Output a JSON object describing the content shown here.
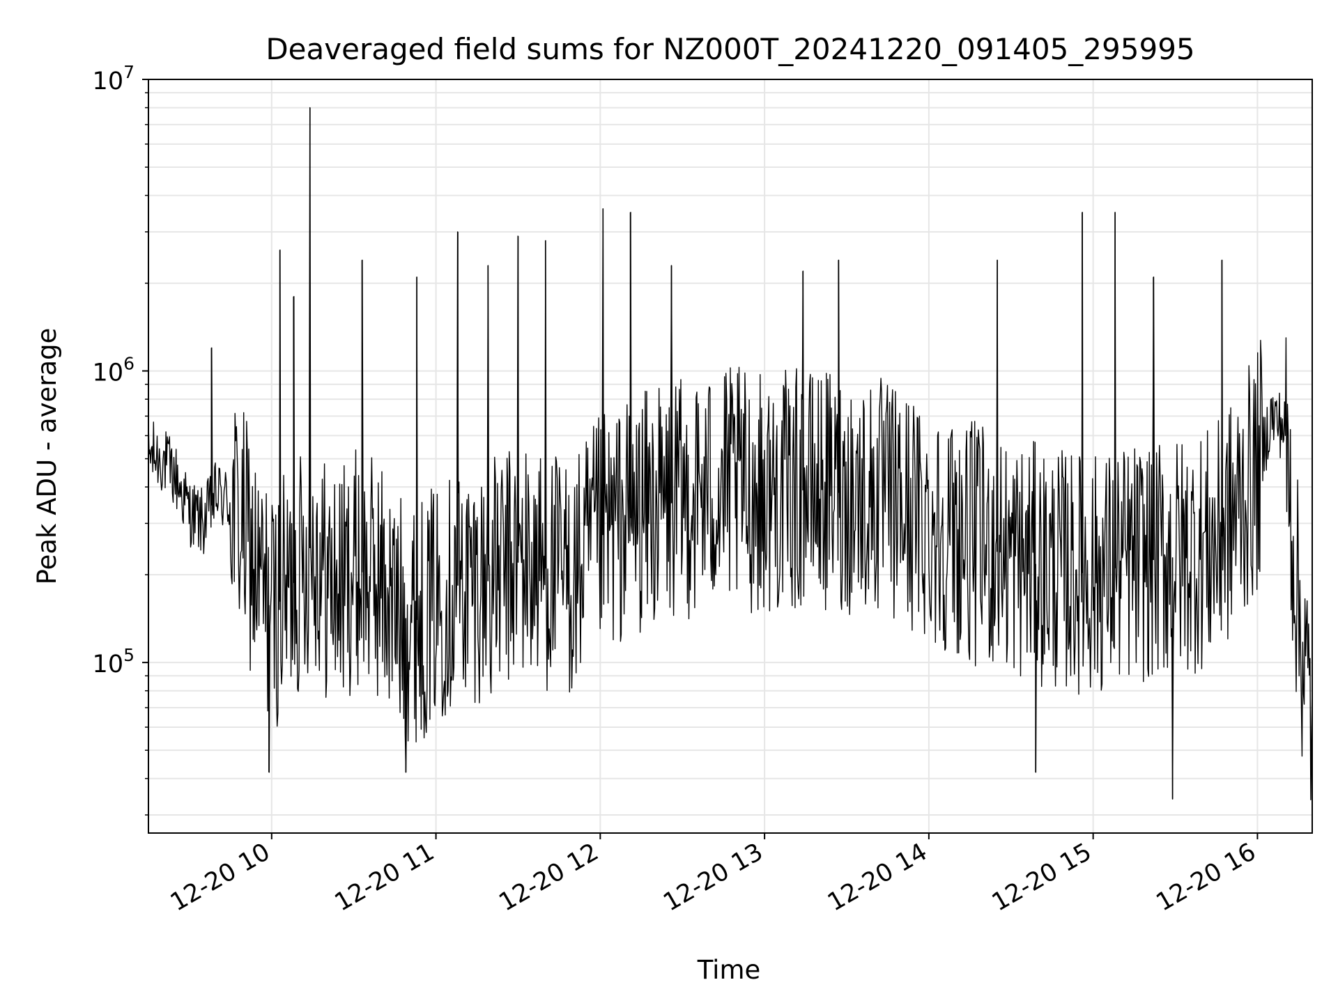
{
  "chart_data": {
    "type": "line",
    "title": "Deaveraged field sums for NZ000T_20241220_091405_295995",
    "xlabel": "Time",
    "ylabel": "Peak ADU - average",
    "yscale": "log",
    "ylim": [
      26000,
      10000000
    ],
    "xlim": [
      "2024-12-20 09:15",
      "2024-12-20 16:20"
    ],
    "grid": true,
    "line_color": "#000000",
    "grid_color": "#e6e6e6",
    "x_ticks": [
      {
        "value": "2024-12-20 10:00",
        "label": "12-20 10"
      },
      {
        "value": "2024-12-20 11:00",
        "label": "12-20 11"
      },
      {
        "value": "2024-12-20 12:00",
        "label": "12-20 12"
      },
      {
        "value": "2024-12-20 13:00",
        "label": "12-20 13"
      },
      {
        "value": "2024-12-20 14:00",
        "label": "12-20 14"
      },
      {
        "value": "2024-12-20 15:00",
        "label": "12-20 15"
      },
      {
        "value": "2024-12-20 16:00",
        "label": "12-20 16"
      }
    ],
    "y_ticks": [
      {
        "value": 100000,
        "base": "10",
        "exp": "5"
      },
      {
        "value": 1000000,
        "base": "10",
        "exp": "6"
      },
      {
        "value": 10000000,
        "base": "10",
        "exp": "7"
      }
    ],
    "series": [
      {
        "x": [
          "2024-12-20 09:15",
          "2024-12-20 09:20",
          "2024-12-20 09:25",
          "2024-12-20 09:30",
          "2024-12-20 09:35",
          "2024-12-20 09:40",
          "2024-12-20 09:45",
          "2024-12-20 09:50",
          "2024-12-20 09:55",
          "2024-12-20 10:00",
          "2024-12-20 10:05",
          "2024-12-20 10:10",
          "2024-12-20 10:15",
          "2024-12-20 10:20",
          "2024-12-20 10:25",
          "2024-12-20 10:30",
          "2024-12-20 10:35",
          "2024-12-20 10:40",
          "2024-12-20 10:45",
          "2024-12-20 10:50",
          "2024-12-20 10:55",
          "2024-12-20 11:00",
          "2024-12-20 11:10",
          "2024-12-20 11:20",
          "2024-12-20 11:30",
          "2024-12-20 11:40",
          "2024-12-20 11:50",
          "2024-12-20 12:00",
          "2024-12-20 12:15",
          "2024-12-20 12:30",
          "2024-12-20 12:45",
          "2024-12-20 13:00",
          "2024-12-20 13:15",
          "2024-12-20 13:30",
          "2024-12-20 13:45",
          "2024-12-20 14:00",
          "2024-12-20 14:15",
          "2024-12-20 14:30",
          "2024-12-20 14:45",
          "2024-12-20 15:00",
          "2024-12-20 15:15",
          "2024-12-20 15:30",
          "2024-12-20 15:45",
          "2024-12-20 16:00",
          "2024-12-20 16:05",
          "2024-12-20 16:10",
          "2024-12-20 16:15",
          "2024-12-20 16:20"
        ],
        "y": [
          520000,
          500000,
          430000,
          330000,
          300000,
          380000,
          350000,
          280000,
          190000,
          150000,
          170000,
          200000,
          260000,
          190000,
          180000,
          210000,
          200000,
          190000,
          150000,
          140000,
          140000,
          160000,
          190000,
          190000,
          220000,
          210000,
          190000,
          270000,
          330000,
          360000,
          400000,
          380000,
          390000,
          380000,
          360000,
          300000,
          260000,
          230000,
          210000,
          200000,
          220000,
          230000,
          250000,
          450000,
          700000,
          640000,
          150000,
          60000
        ]
      }
    ],
    "spikes": [
      {
        "x": "2024-12-20 09:38",
        "y": 1200000
      },
      {
        "x": "2024-12-20 10:03",
        "y": 2600000
      },
      {
        "x": "2024-12-20 10:08",
        "y": 1800000
      },
      {
        "x": "2024-12-20 10:14",
        "y": 8000000
      },
      {
        "x": "2024-12-20 10:33",
        "y": 2400000
      },
      {
        "x": "2024-12-20 10:53",
        "y": 2100000
      },
      {
        "x": "2024-12-20 11:08",
        "y": 3000000
      },
      {
        "x": "2024-12-20 11:19",
        "y": 2300000
      },
      {
        "x": "2024-12-20 11:30",
        "y": 2900000
      },
      {
        "x": "2024-12-20 11:40",
        "y": 2800000
      },
      {
        "x": "2024-12-20 12:01",
        "y": 3600000
      },
      {
        "x": "2024-12-20 12:11",
        "y": 3500000
      },
      {
        "x": "2024-12-20 12:26",
        "y": 2300000
      },
      {
        "x": "2024-12-20 13:14",
        "y": 2200000
      },
      {
        "x": "2024-12-20 13:27",
        "y": 2400000
      },
      {
        "x": "2024-12-20 14:25",
        "y": 2400000
      },
      {
        "x": "2024-12-20 14:56",
        "y": 3500000
      },
      {
        "x": "2024-12-20 15:08",
        "y": 3500000
      },
      {
        "x": "2024-12-20 15:22",
        "y": 2100000
      },
      {
        "x": "2024-12-20 15:47",
        "y": 2400000
      }
    ],
    "dips": [
      {
        "x": "2024-12-20 09:59",
        "y": 42000
      },
      {
        "x": "2024-12-20 10:49",
        "y": 42000
      },
      {
        "x": "2024-12-20 14:39",
        "y": 42000
      },
      {
        "x": "2024-12-20 15:29",
        "y": 34000
      }
    ]
  }
}
